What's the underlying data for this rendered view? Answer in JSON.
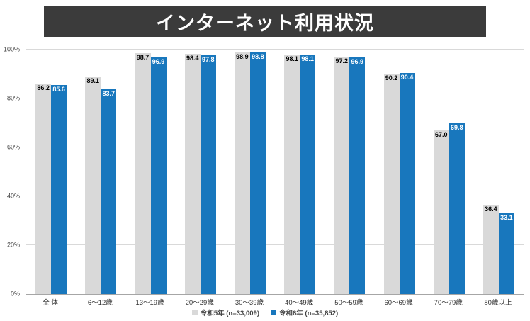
{
  "title": "インターネット利用状況",
  "chart_data": {
    "type": "bar",
    "title": "インターネット利用状況",
    "categories": [
      "全 体",
      "6〜12歳",
      "13〜19歳",
      "20〜29歳",
      "30〜39歳",
      "40〜49歳",
      "50〜59歳",
      "60〜69歳",
      "70〜79歳",
      "80歳以上"
    ],
    "series": [
      {
        "name": "令和5年 (n=33,009)",
        "color": "#d9d9d9",
        "label_color": "#000000",
        "values": [
          86.2,
          89.1,
          98.7,
          98.4,
          98.9,
          98.1,
          97.2,
          90.2,
          67.0,
          36.4
        ]
      },
      {
        "name": "令和6年 (n=35,852)",
        "color": "#1877bd",
        "label_color": "#ffffff",
        "values": [
          85.6,
          83.7,
          96.9,
          97.8,
          98.8,
          98.1,
          96.9,
          90.4,
          69.8,
          33.1
        ]
      }
    ],
    "xlabel": "",
    "ylabel": "",
    "ylim": [
      0,
      100
    ],
    "ytick_values": [
      100,
      80,
      60,
      40,
      20,
      0
    ],
    "ytick_labels": [
      "100%",
      "80%",
      "60%",
      "40%",
      "20%",
      "0%"
    ],
    "grid": true,
    "legend_position": "bottom"
  }
}
